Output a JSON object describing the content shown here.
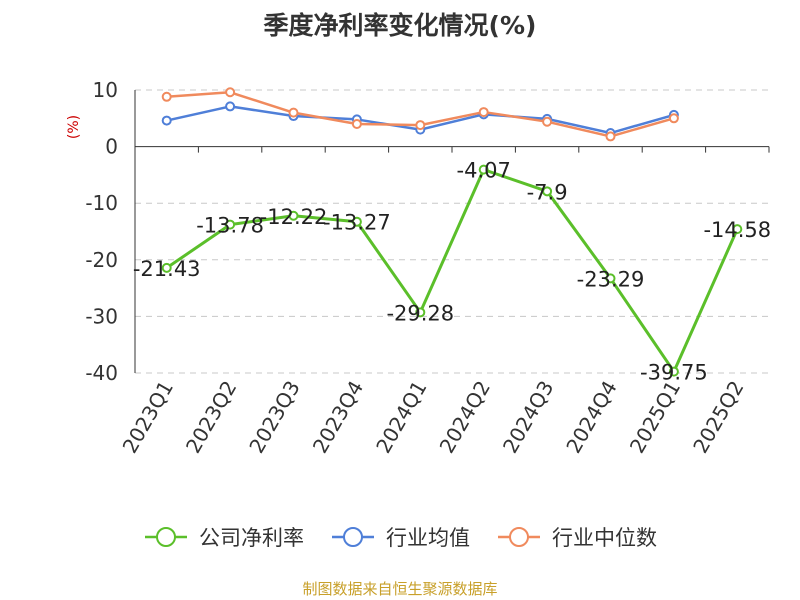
{
  "chart_data": {
    "type": "line",
    "title": "季度净利率变化情况(%)",
    "ylabel": "(%)",
    "xlabel": "",
    "categories": [
      "2023Q1",
      "2023Q2",
      "2023Q3",
      "2023Q4",
      "2024Q1",
      "2024Q2",
      "2024Q3",
      "2024Q4",
      "2025Q1",
      "2025Q2"
    ],
    "ylim": [
      -40,
      10
    ],
    "yticks": [
      10,
      0,
      -10,
      -20,
      -30,
      -40
    ],
    "grid": "horizontal-dashed",
    "legend_position": "bottom",
    "series": [
      {
        "name": "公司净利率",
        "color": "#5bbf2a",
        "values": [
          -21.43,
          -13.78,
          -12.22,
          -13.27,
          -29.28,
          -4.07,
          -7.9,
          -23.29,
          -39.75,
          -14.58
        ],
        "labels": [
          "-21.43",
          "-13.78",
          "-12.22",
          "-13.27",
          "-29.28",
          "-4.07",
          "-7.9",
          "-23.29",
          "-39.75",
          "-14.58"
        ]
      },
      {
        "name": "行业均值",
        "color": "#4f7fd8",
        "values": [
          4.6,
          7.1,
          5.4,
          4.8,
          3.0,
          5.7,
          4.9,
          2.4,
          5.6,
          null
        ]
      },
      {
        "name": "行业中位数",
        "color": "#f08a5d",
        "values": [
          8.8,
          9.6,
          6.0,
          4.0,
          3.8,
          6.1,
          4.4,
          1.8,
          5.0,
          null
        ]
      }
    ]
  },
  "source_text": "制图数据来自恒生聚源数据库"
}
